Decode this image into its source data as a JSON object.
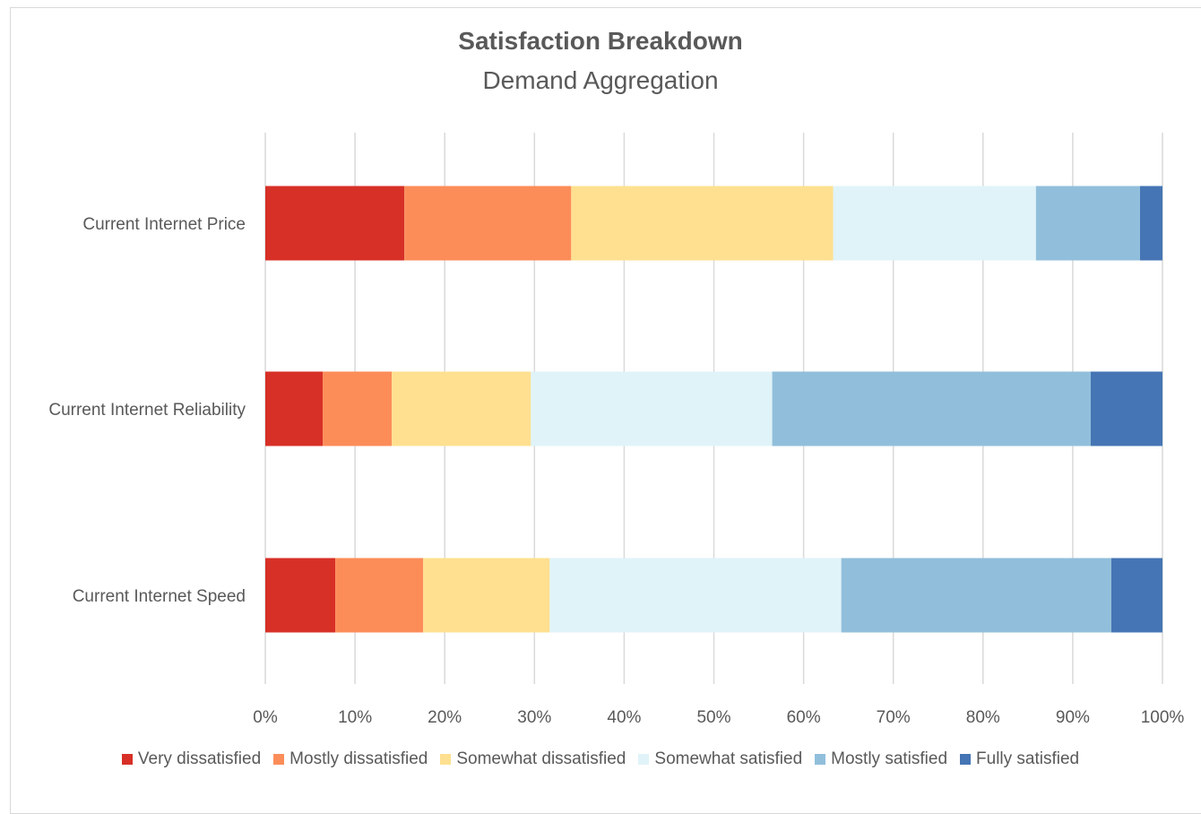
{
  "chart_data": {
    "type": "bar",
    "orientation": "horizontal",
    "stacked": "percent",
    "title": "Satisfaction Breakdown",
    "subtitle": "Demand Aggregation",
    "categories": [
      "Current Internet Price",
      "Current Internet Reliability",
      "Current Internet Speed"
    ],
    "xlim": [
      0,
      100
    ],
    "xticks": [
      "0%",
      "10%",
      "20%",
      "30%",
      "40%",
      "50%",
      "60%",
      "70%",
      "80%",
      "90%",
      "100%"
    ],
    "grid": "vertical",
    "legend_position": "bottom",
    "series": [
      {
        "name": "Very dissatisfied",
        "color": "#d73027",
        "values": [
          15.5,
          6.4,
          7.8
        ]
      },
      {
        "name": "Mostly dissatisfied",
        "color": "#fc8d59",
        "values": [
          18.6,
          7.7,
          9.8
        ]
      },
      {
        "name": "Somewhat dissatisfied",
        "color": "#fee090",
        "values": [
          29.2,
          15.5,
          14.1
        ]
      },
      {
        "name": "Somewhat satisfied",
        "color": "#e0f3f8",
        "values": [
          22.6,
          26.9,
          32.5
        ]
      },
      {
        "name": "Mostly satisfied",
        "color": "#91bfdb",
        "values": [
          11.6,
          35.5,
          30.1
        ]
      },
      {
        "name": "Fully satisfied",
        "color": "#4575b4",
        "values": [
          2.5,
          8.0,
          5.7
        ]
      }
    ]
  }
}
